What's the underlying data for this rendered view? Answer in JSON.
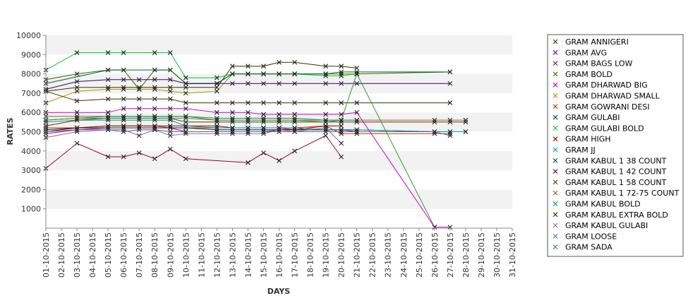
{
  "chart_data": {
    "type": "line",
    "xlabel": "DAYS",
    "ylabel": "RATES",
    "ylim": [
      0,
      10000
    ],
    "yticks": [
      1000,
      2000,
      3000,
      4000,
      5000,
      6000,
      7000,
      8000,
      9000,
      10000
    ],
    "grid": "horizontal alternating bands",
    "legend_position": "right",
    "x": [
      "01-10-2015",
      "02-10-2015",
      "03-10-2015",
      "04-10-2015",
      "05-10-2015",
      "06-10-2015",
      "07-10-2015",
      "08-10-2015",
      "09-10-2015",
      "10-10-2015",
      "11-10-2015",
      "12-10-2015",
      "13-10-2015",
      "14-10-2015",
      "15-10-2015",
      "16-10-2015",
      "17-10-2015",
      "18-10-2015",
      "19-10-2015",
      "20-10-2015",
      "21-10-2015",
      "22-10-2015",
      "23-10-2015",
      "24-10-2015",
      "25-10-2015",
      "26-10-2015",
      "27-10-2015",
      "28-10-2015",
      "29-10-2015",
      "30-10-2015",
      "31-10-2015"
    ],
    "series": [
      {
        "name": "GRAM ANNIGERI",
        "color": "#333300",
        "values": [
          7100,
          null,
          7300,
          null,
          7300,
          7300,
          7300,
          7300,
          7300,
          7300,
          null,
          7300,
          8400,
          8400,
          8400,
          8600,
          8600,
          null,
          8400,
          8400,
          8300,
          null,
          null,
          null,
          null,
          null,
          null,
          null,
          null,
          null,
          null
        ]
      },
      {
        "name": "GRAM AVG",
        "color": "#990099",
        "values": [
          4900,
          null,
          5100,
          null,
          5200,
          5200,
          5200,
          5200,
          5200,
          5000,
          null,
          5000,
          5000,
          5000,
          5000,
          5100,
          5100,
          null,
          5100,
          5100,
          5000,
          null,
          null,
          null,
          null,
          null,
          null,
          null,
          null,
          null,
          null
        ]
      },
      {
        "name": "GRAM BAGS LOW",
        "color": "#990033",
        "values": [
          3100,
          null,
          4400,
          null,
          3700,
          3700,
          3900,
          3600,
          4100,
          3600,
          null,
          null,
          null,
          3400,
          3900,
          3500,
          4000,
          null,
          4800,
          3700,
          null,
          null,
          null,
          null,
          null,
          null,
          null,
          null,
          null,
          null,
          null
        ]
      },
      {
        "name": "GRAM BOLD",
        "color": "#336600",
        "values": [
          7700,
          null,
          8000,
          null,
          8200,
          8200,
          7200,
          8200,
          8200,
          7500,
          null,
          7500,
          8000,
          8000,
          8000,
          8000,
          8000,
          null,
          8000,
          8000,
          8000,
          null,
          null,
          null,
          null,
          null,
          8100,
          null,
          null,
          null,
          null
        ]
      },
      {
        "name": "GRAM DHARWAD BIG",
        "color": "#cc00cc",
        "values": [
          6000,
          null,
          6000,
          null,
          6000,
          6200,
          6200,
          6200,
          6200,
          6200,
          null,
          6000,
          6000,
          6000,
          5900,
          5900,
          5900,
          null,
          5900,
          5900,
          6000,
          null,
          null,
          null,
          null,
          50,
          50,
          null,
          null,
          null,
          null
        ]
      },
      {
        "name": "GRAM DHARWAD SMALL",
        "color": "#999900",
        "values": [
          6500,
          null,
          7100,
          null,
          7200,
          7200,
          7200,
          7200,
          7100,
          7000,
          null,
          7100,
          8000,
          8000,
          8000,
          8000,
          8000,
          null,
          8000,
          8000,
          8000,
          null,
          null,
          null,
          null,
          null,
          null,
          null,
          null,
          null,
          null
        ]
      },
      {
        "name": "GRAM GOWRANI DESI",
        "color": "#cc3300",
        "values": [
          5200,
          null,
          5200,
          null,
          5300,
          5300,
          5300,
          5300,
          5200,
          5200,
          null,
          5200,
          5200,
          5200,
          5200,
          5200,
          5200,
          null,
          5300,
          4900,
          4900,
          null,
          null,
          null,
          null,
          4900,
          4900,
          null,
          null,
          null,
          null
        ]
      },
      {
        "name": "GRAM GULABI",
        "color": "#003333",
        "values": [
          5100,
          null,
          5200,
          null,
          5200,
          5200,
          5200,
          5200,
          5200,
          5200,
          null,
          5100,
          5100,
          5100,
          5100,
          5100,
          5100,
          null,
          5100,
          5100,
          5100,
          null,
          null,
          null,
          null,
          5000,
          5000,
          5000,
          null,
          null,
          null
        ]
      },
      {
        "name": "GRAM GULABI BOLD",
        "color": "#00cc33",
        "values": [
          8200,
          null,
          9100,
          null,
          9100,
          9100,
          null,
          9100,
          9100,
          7800,
          null,
          7800,
          8000,
          8000,
          8000,
          8000,
          8000,
          null,
          7900,
          7900,
          8000,
          null,
          null,
          null,
          null,
          null,
          null,
          null,
          null,
          null,
          null
        ]
      },
      {
        "name": "GRAM HIGH",
        "color": "#990000",
        "values": [
          5000,
          null,
          5200,
          null,
          5300,
          5300,
          5300,
          5300,
          5300,
          5300,
          null,
          5300,
          5200,
          5200,
          5200,
          5200,
          5100,
          null,
          5300,
          5300,
          null,
          null,
          null,
          null,
          null,
          null,
          null,
          null,
          null,
          null,
          null
        ]
      },
      {
        "name": "GRAM JJ",
        "color": "#009999",
        "values": [
          5500,
          null,
          5600,
          null,
          5600,
          5600,
          5600,
          5600,
          5600,
          5300,
          null,
          5200,
          5200,
          5200,
          5200,
          5200,
          5200,
          null,
          5100,
          5100,
          5100,
          null,
          null,
          null,
          null,
          5000,
          5000,
          5000,
          null,
          null,
          null
        ]
      },
      {
        "name": "GRAM KABUL 1 38 COUNT",
        "color": "#006633",
        "values": [
          7500,
          null,
          null,
          null,
          8200,
          8200,
          null,
          8200,
          8200,
          7500,
          null,
          7500,
          8000,
          8000,
          8000,
          8000,
          8000,
          null,
          8000,
          8100,
          8100,
          null,
          null,
          null,
          null,
          null,
          8100,
          null,
          null,
          null,
          null
        ]
      },
      {
        "name": "GRAM KABUL 1 42 COUNT",
        "color": "#330066",
        "values": [
          7200,
          null,
          7600,
          null,
          7700,
          7700,
          7700,
          7700,
          7700,
          7500,
          null,
          7500,
          7500,
          7500,
          7500,
          7500,
          7500,
          null,
          7500,
          7500,
          7500,
          null,
          null,
          null,
          null,
          null,
          7500,
          null,
          null,
          null,
          null
        ]
      },
      {
        "name": "GRAM KABUL 1 58 COUNT",
        "color": "#663300",
        "values": [
          5300,
          null,
          5600,
          null,
          5700,
          5700,
          5700,
          5700,
          5700,
          5500,
          null,
          5500,
          5500,
          5500,
          5500,
          5500,
          5500,
          null,
          5500,
          5500,
          5500,
          null,
          null,
          null,
          null,
          5500,
          5500,
          5500,
          null,
          null,
          null
        ]
      },
      {
        "name": "GRAM KABUL 1 72-75 COUNT",
        "color": "#996633",
        "values": [
          5800,
          null,
          5800,
          null,
          5800,
          5800,
          5800,
          5800,
          5800,
          5800,
          null,
          5600,
          5600,
          5600,
          5600,
          5600,
          5600,
          null,
          5600,
          5600,
          5600,
          null,
          null,
          null,
          null,
          5600,
          5600,
          5600,
          null,
          null,
          null
        ]
      },
      {
        "name": "GRAM KABUL BOLD",
        "color": "#009966",
        "values": [
          5600,
          null,
          5700,
          null,
          5800,
          5800,
          5800,
          5800,
          5800,
          5800,
          null,
          5700,
          5700,
          5700,
          5700,
          5700,
          5700,
          null,
          5600,
          5600,
          5600,
          null,
          null,
          null,
          null,
          null,
          null,
          null,
          null,
          null,
          null
        ]
      },
      {
        "name": "GRAM KABUL EXTRA BOLD",
        "color": "#333300",
        "values": [
          7100,
          null,
          6600,
          null,
          6700,
          6700,
          6700,
          6700,
          6700,
          6500,
          null,
          6500,
          6500,
          6500,
          6500,
          6500,
          6500,
          null,
          6500,
          6500,
          6500,
          null,
          null,
          null,
          null,
          null,
          6500,
          null,
          null,
          null,
          null
        ]
      },
      {
        "name": "GRAM KABUL GULABI",
        "color": "#996699",
        "values": [
          4700,
          null,
          5000,
          null,
          5100,
          5100,
          4800,
          5100,
          4800,
          4900,
          null,
          4900,
          4900,
          4900,
          4900,
          5100,
          5000,
          null,
          5200,
          4400,
          null,
          null,
          null,
          null,
          null,
          null,
          null,
          null,
          null,
          null,
          null
        ]
      },
      {
        "name": "GRAM LOOSE",
        "color": "#666699",
        "values": [
          5000,
          null,
          5100,
          null,
          5100,
          5000,
          5100,
          5100,
          5000,
          5000,
          null,
          5000,
          5000,
          5000,
          5000,
          5000,
          5000,
          null,
          5000,
          5000,
          5000,
          null,
          null,
          null,
          null,
          5000,
          4800,
          null,
          null,
          null,
          null
        ]
      },
      {
        "name": "GRAM SADA",
        "color": "#339933",
        "values": [
          5600,
          null,
          5700,
          null,
          5700,
          5700,
          5700,
          5700,
          5700,
          5700,
          null,
          5600,
          5600,
          5600,
          5600,
          5600,
          5600,
          null,
          5500,
          5600,
          8000,
          null,
          null,
          null,
          null,
          50,
          null,
          null,
          null,
          null,
          null
        ]
      }
    ]
  }
}
